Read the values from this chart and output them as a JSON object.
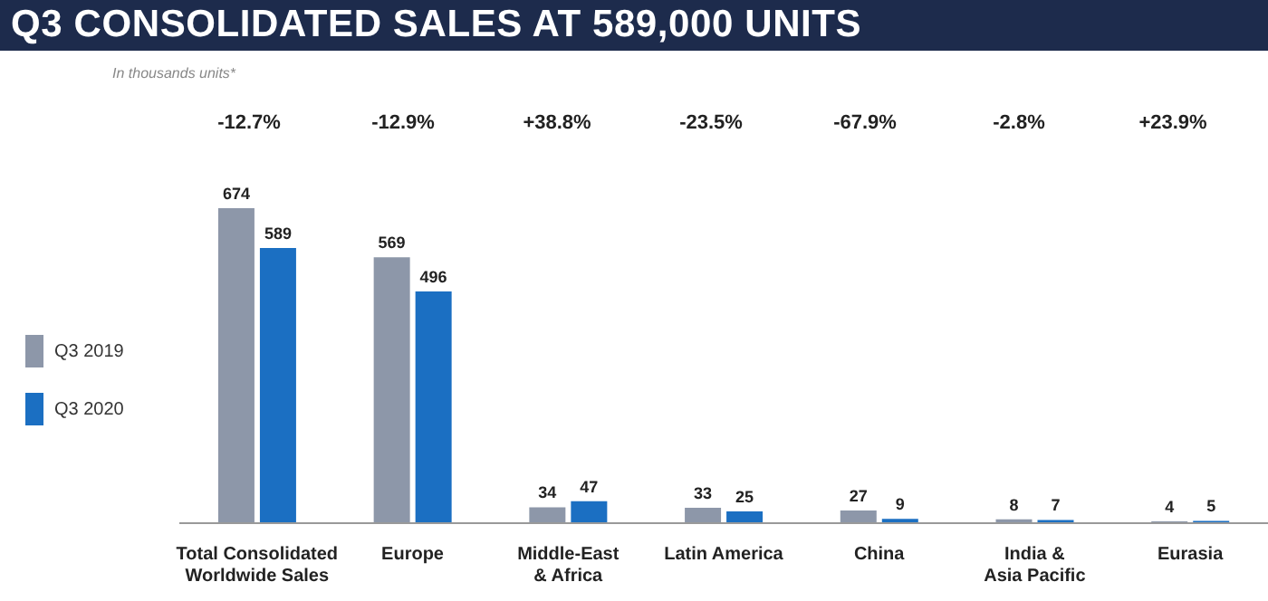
{
  "chart_data": {
    "type": "bar",
    "title": "Q3 CONSOLIDATED SALES AT 589,000 UNITS",
    "subtitle": "In thousands units*",
    "categories": [
      "Total Consolidated\nWorldwide Sales",
      "Europe",
      "Middle-East\n& Africa",
      "Latin America",
      "China",
      "India &\nAsia Pacific",
      "Eurasia"
    ],
    "series": [
      {
        "name": "Q3 2019",
        "color": "#8d97a9",
        "values": [
          674,
          569,
          34,
          33,
          27,
          8,
          4
        ]
      },
      {
        "name": "Q3 2020",
        "color": "#1b6fc2",
        "values": [
          589,
          496,
          47,
          25,
          9,
          7,
          5
        ]
      }
    ],
    "annotations": [
      "-12.7%",
      "-12.9%",
      "+38.8%",
      "-23.5%",
      "-67.9%",
      "-2.8%",
      "+23.9%"
    ],
    "data_labels": true,
    "legend": "left",
    "grid": false
  }
}
